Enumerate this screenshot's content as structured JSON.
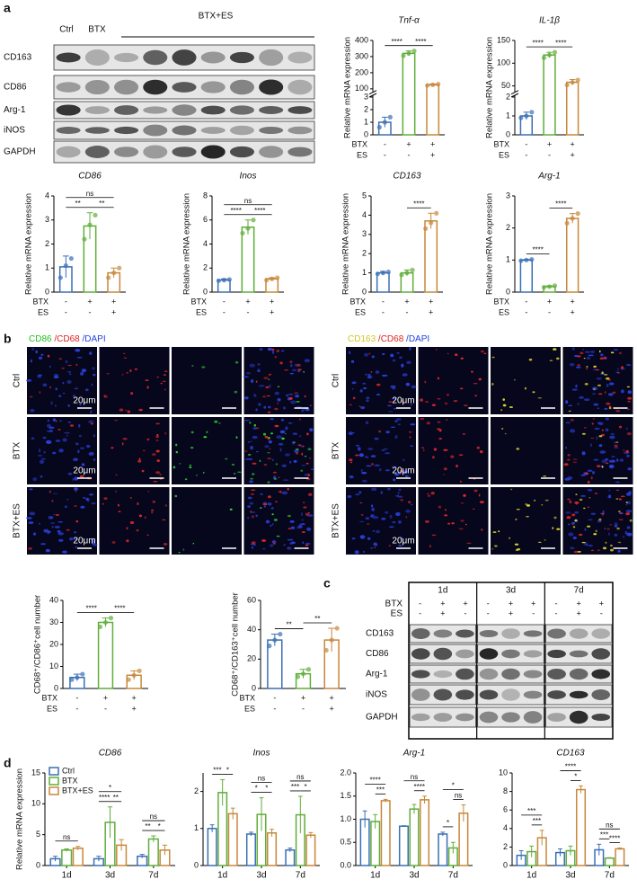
{
  "panel_labels": [
    "a",
    "b",
    "c",
    "d"
  ],
  "blot_a": {
    "columns": [
      "Ctrl",
      "BTX",
      "BTX+ES"
    ],
    "rows": [
      "CD163",
      "CD86",
      "Arg-1",
      "iNOS",
      "GAPDH"
    ]
  },
  "microscopy": [
    {
      "stain": [
        {
          "text": "CD86",
          "color": "#22c022"
        },
        {
          "text": " /CD68",
          "color": "#e02020"
        },
        {
          "text": " /DAPI",
          "color": "#2040e0"
        }
      ],
      "rows": [
        "Ctrl",
        "BTX",
        "BTX+ES"
      ],
      "scale_bar": "20μm",
      "marker_color": "#33dd33"
    },
    {
      "stain": [
        {
          "text": "CD163",
          "color": "#d0c820"
        },
        {
          "text": " /CD68",
          "color": "#e02020"
        },
        {
          "text": " /DAPI",
          "color": "#2040e0"
        }
      ],
      "rows": [
        "Ctrl",
        "BTX",
        "BTX+ES"
      ],
      "scale_bar": "20μm",
      "marker_color": "#e6e030"
    }
  ],
  "blot_c": {
    "groups": [
      "1d",
      "3d",
      "7d"
    ],
    "conditions": [
      {
        "name": "BTX",
        "signs": [
          "-",
          "+",
          "+",
          "-",
          "+",
          "+",
          "-",
          "+",
          "+"
        ]
      },
      {
        "name": "ES",
        "signs": [
          "-",
          "+",
          "-",
          "-",
          "+",
          "-",
          "-",
          "+",
          "-"
        ]
      }
    ],
    "rows": [
      "CD163",
      "CD86",
      "Arg-1",
      "iNOS",
      "GAPDH"
    ]
  },
  "chart_data": [
    {
      "type": "bar",
      "title": "Tnf-α",
      "ylabel": "Relative mRNA expression",
      "ylim": [
        0,
        400
      ],
      "ybreak": [
        3,
        90
      ],
      "yticks": [
        0,
        1,
        2,
        3,
        100,
        200,
        300,
        400
      ],
      "values": [
        1,
        320,
        125
      ],
      "errors": [
        0.4,
        15,
        5
      ],
      "points": [
        [
          0.6,
          1.0,
          1.4
        ],
        [
          305,
          320,
          335
        ],
        [
          121,
          125,
          129
        ]
      ],
      "colors": [
        "#3a6fb5",
        "#5fae3a",
        "#c8873a"
      ],
      "conditions": [
        {
          "name": "BTX",
          "signs": [
            "-",
            "+",
            "+"
          ]
        },
        {
          "name": "ES",
          "signs": [
            "-",
            "-",
            "+"
          ]
        }
      ],
      "comparisons": [
        {
          "bars": [
            0,
            1
          ],
          "label": "****"
        },
        {
          "bars": [
            1,
            2
          ],
          "label": "****"
        }
      ]
    },
    {
      "type": "bar",
      "title": "IL-1β",
      "ylabel": "Relative mRNA expression",
      "ylim": [
        0,
        150
      ],
      "ybreak": [
        2,
        40
      ],
      "yticks": [
        0,
        1,
        2,
        50,
        100,
        150
      ],
      "values": [
        1,
        118,
        58
      ],
      "errors": [
        0.2,
        6,
        6
      ],
      "points": [
        [
          0.9,
          1.0,
          1.2
        ],
        [
          112,
          118,
          124
        ],
        [
          52,
          58,
          63
        ]
      ],
      "colors": [
        "#3a6fb5",
        "#5fae3a",
        "#c8873a"
      ],
      "conditions": [
        {
          "name": "BTX",
          "signs": [
            "-",
            "+",
            "+"
          ]
        },
        {
          "name": "ES",
          "signs": [
            "-",
            "-",
            "+"
          ]
        }
      ],
      "comparisons": [
        {
          "bars": [
            0,
            1
          ],
          "label": "****"
        },
        {
          "bars": [
            1,
            2
          ],
          "label": "****"
        }
      ]
    },
    {
      "type": "bar",
      "title": "CD86",
      "ylabel": "Relative mRNA expression",
      "ylim": [
        0,
        4
      ],
      "yticks": [
        0,
        1,
        2,
        3,
        4
      ],
      "values": [
        1.05,
        2.75,
        0.8
      ],
      "errors": [
        0.45,
        0.55,
        0.2
      ],
      "points": [
        [
          0.6,
          1.1,
          1.4
        ],
        [
          2.2,
          2.8,
          3.2
        ],
        [
          0.6,
          0.8,
          1.0
        ]
      ],
      "colors": [
        "#3a6fb5",
        "#5fae3a",
        "#c8873a"
      ],
      "conditions": [
        {
          "name": "BTX",
          "signs": [
            "-",
            "+",
            "+"
          ]
        },
        {
          "name": "ES",
          "signs": [
            "-",
            "-",
            "+"
          ]
        }
      ],
      "comparisons": [
        {
          "bars": [
            0,
            1
          ],
          "label": "**"
        },
        {
          "bars": [
            1,
            2
          ],
          "label": "**"
        },
        {
          "bars": [
            0,
            2
          ],
          "label": "ns"
        }
      ]
    },
    {
      "type": "bar",
      "title": "Inos",
      "ylabel": "Relative mRNA expression",
      "ylim": [
        0,
        8
      ],
      "yticks": [
        0,
        2,
        4,
        6,
        8
      ],
      "values": [
        1.0,
        5.4,
        1.1
      ],
      "errors": [
        0.1,
        0.6,
        0.1
      ],
      "points": [
        [
          0.95,
          1.0,
          1.05
        ],
        [
          4.9,
          5.3,
          6.0
        ],
        [
          1.0,
          1.1,
          1.2
        ]
      ],
      "colors": [
        "#3a6fb5",
        "#5fae3a",
        "#c8873a"
      ],
      "conditions": [
        {
          "name": "BTX",
          "signs": [
            "-",
            "+",
            "+"
          ]
        },
        {
          "name": "ES",
          "signs": [
            "-",
            "-",
            "+"
          ]
        }
      ],
      "comparisons": [
        {
          "bars": [
            0,
            1
          ],
          "label": "****"
        },
        {
          "bars": [
            1,
            2
          ],
          "label": "****"
        },
        {
          "bars": [
            0,
            2
          ],
          "label": "ns"
        }
      ]
    },
    {
      "type": "bar",
      "title": "CD163",
      "ylabel": "Relative mRNA expression",
      "ylim": [
        0,
        5
      ],
      "yticks": [
        0,
        1,
        2,
        3,
        4,
        5
      ],
      "values": [
        1.0,
        1.0,
        3.7
      ],
      "errors": [
        0.08,
        0.15,
        0.4
      ],
      "points": [
        [
          0.95,
          1.0,
          1.05
        ],
        [
          0.9,
          1.0,
          1.15
        ],
        [
          3.3,
          3.6,
          4.1
        ]
      ],
      "colors": [
        "#3a6fb5",
        "#5fae3a",
        "#c8873a"
      ],
      "conditions": [
        {
          "name": "BTX",
          "signs": [
            "-",
            "+",
            "+"
          ]
        },
        {
          "name": "ES",
          "signs": [
            "-",
            "-",
            "+"
          ]
        }
      ],
      "comparisons": [
        {
          "bars": [
            1,
            2
          ],
          "label": "****"
        }
      ]
    },
    {
      "type": "bar",
      "title": "Arg-1",
      "ylabel": "Relative mRNA expression",
      "ylim": [
        0,
        3
      ],
      "yticks": [
        0,
        1,
        2,
        3
      ],
      "values": [
        1.0,
        0.17,
        2.3
      ],
      "errors": [
        0.02,
        0.03,
        0.15
      ],
      "points": [
        [
          0.98,
          1.0,
          1.02
        ],
        [
          0.15,
          0.17,
          0.2
        ],
        [
          2.15,
          2.3,
          2.45
        ]
      ],
      "colors": [
        "#3a6fb5",
        "#5fae3a",
        "#c8873a"
      ],
      "conditions": [
        {
          "name": "BTX",
          "signs": [
            "-",
            "+",
            "+"
          ]
        },
        {
          "name": "ES",
          "signs": [
            "-",
            "-",
            "+"
          ]
        }
      ],
      "comparisons": [
        {
          "bars": [
            0,
            1
          ],
          "label": "****"
        },
        {
          "bars": [
            1,
            2
          ],
          "label": "****"
        }
      ]
    },
    {
      "type": "bar",
      "ylabel": "CD68⁺/CD86⁺cell number",
      "ylim": [
        0,
        40
      ],
      "yticks": [
        0,
        10,
        20,
        30,
        40
      ],
      "values": [
        5,
        30,
        6
      ],
      "errors": [
        1.5,
        2,
        2
      ],
      "points": [
        [
          4,
          5,
          6.5
        ],
        [
          28,
          30,
          32
        ],
        [
          4,
          6,
          8
        ]
      ],
      "colors": [
        "#3a6fb5",
        "#5fae3a",
        "#c8873a"
      ],
      "conditions": [
        {
          "name": "BTX",
          "signs": [
            "-",
            "+",
            "+"
          ]
        },
        {
          "name": "ES",
          "signs": [
            "-",
            "-",
            "+"
          ]
        }
      ],
      "comparisons": [
        {
          "bars": [
            0,
            1
          ],
          "label": "****"
        },
        {
          "bars": [
            1,
            2
          ],
          "label": "****"
        }
      ]
    },
    {
      "type": "bar",
      "ylabel": "CD68⁺/CD163⁺cell number",
      "ylim": [
        0,
        60
      ],
      "yticks": [
        0,
        20,
        40,
        60
      ],
      "values": [
        33,
        10,
        33
      ],
      "errors": [
        4,
        3,
        8
      ],
      "points": [
        [
          29,
          33,
          37
        ],
        [
          8,
          10,
          13
        ],
        [
          26,
          33,
          41
        ]
      ],
      "colors": [
        "#3a6fb5",
        "#5fae3a",
        "#c8873a"
      ],
      "conditions": [
        {
          "name": "BTX",
          "signs": [
            "-",
            "+",
            "+"
          ]
        },
        {
          "name": "ES",
          "signs": [
            "-",
            "-",
            "+"
          ]
        }
      ],
      "comparisons": [
        {
          "bars": [
            0,
            1
          ],
          "label": "**"
        },
        {
          "bars": [
            1,
            2
          ],
          "label": "**"
        }
      ]
    },
    {
      "type": "grouped_bar",
      "title": "CD86",
      "ylabel": "Relative mRNA expression",
      "ylim": [
        0,
        15
      ],
      "yticks": [
        0,
        5,
        10,
        15
      ],
      "legend": "top-left",
      "categories": [
        "1d",
        "3d",
        "7d"
      ],
      "series": [
        {
          "name": "Ctrl",
          "color": "#3a6fb5",
          "values": [
            1.1,
            1.1,
            1.5
          ],
          "errors": [
            0.4,
            0.4,
            0.3
          ]
        },
        {
          "name": "BTX",
          "color": "#5fae3a",
          "values": [
            2.5,
            7.0,
            4.3
          ],
          "errors": [
            0.2,
            2.5,
            0.5
          ]
        },
        {
          "name": "BTX+ES",
          "color": "#c8873a",
          "values": [
            2.8,
            3.3,
            2.5
          ],
          "errors": [
            0.3,
            0.9,
            0.8
          ]
        }
      ],
      "comparisons": [
        {
          "group": 0,
          "bars": [
            0,
            2
          ],
          "label": "ns"
        },
        {
          "group": 1,
          "bars": [
            0,
            1
          ],
          "label": "****"
        },
        {
          "group": 1,
          "bars": [
            1,
            2
          ],
          "label": "**"
        },
        {
          "group": 1,
          "bars": [
            0,
            2
          ],
          "label": "*"
        },
        {
          "group": 2,
          "bars": [
            0,
            1
          ],
          "label": "**"
        },
        {
          "group": 2,
          "bars": [
            1,
            2
          ],
          "label": "*"
        },
        {
          "group": 2,
          "bars": [
            0,
            2
          ],
          "label": "ns"
        }
      ]
    },
    {
      "type": "grouped_bar",
      "title": "Inos",
      "ylim": [
        0,
        2.5
      ],
      "yticks": [
        0,
        1,
        2
      ],
      "categories": [
        "1d",
        "3d",
        "7d"
      ],
      "series": [
        {
          "name": "Ctrl",
          "color": "#3a6fb5",
          "values": [
            1.0,
            0.85,
            0.42
          ],
          "errors": [
            0.1,
            0.05,
            0.05
          ]
        },
        {
          "name": "BTX",
          "color": "#5fae3a",
          "values": [
            1.97,
            1.38,
            1.37
          ],
          "errors": [
            0.35,
            0.45,
            0.5
          ]
        },
        {
          "name": "BTX+ES",
          "color": "#c8873a",
          "values": [
            1.4,
            0.88,
            0.82
          ],
          "errors": [
            0.15,
            0.1,
            0.07
          ]
        }
      ],
      "comparisons": [
        {
          "group": 0,
          "bars": [
            0,
            1
          ],
          "label": "***"
        },
        {
          "group": 0,
          "bars": [
            1,
            2
          ],
          "label": "*"
        },
        {
          "group": 1,
          "bars": [
            0,
            1
          ],
          "label": "*"
        },
        {
          "group": 1,
          "bars": [
            1,
            2
          ],
          "label": "*"
        },
        {
          "group": 1,
          "bars": [
            0,
            2
          ],
          "label": "ns"
        },
        {
          "group": 2,
          "bars": [
            0,
            1
          ],
          "label": "***"
        },
        {
          "group": 2,
          "bars": [
            1,
            2
          ],
          "label": "*"
        },
        {
          "group": 2,
          "bars": [
            0,
            2
          ],
          "label": "ns"
        }
      ]
    },
    {
      "type": "grouped_bar",
      "title": "Arg-1",
      "ylim": [
        0,
        2.0
      ],
      "yticks": [
        {
          "value": 0,
          "label": "0.0"
        },
        0.5,
        {
          "value": 1,
          "label": "1.0"
        },
        1.5,
        {
          "value": 2,
          "label": "2.0"
        }
      ],
      "categories": [
        "1d",
        "3d",
        "7d"
      ],
      "series": [
        {
          "name": "Ctrl",
          "color": "#3a6fb5",
          "values": [
            1.0,
            0.85,
            0.68
          ],
          "errors": [
            0.18,
            0.01,
            0.04
          ]
        },
        {
          "name": "BTX",
          "color": "#5fae3a",
          "values": [
            0.95,
            1.22,
            0.38
          ],
          "errors": [
            0.15,
            0.1,
            0.12
          ]
        },
        {
          "name": "BTX+ES",
          "color": "#c8873a",
          "values": [
            1.4,
            1.42,
            1.13
          ],
          "errors": [
            0.03,
            0.08,
            0.18
          ]
        }
      ],
      "comparisons": [
        {
          "group": 0,
          "bars": [
            1,
            2
          ],
          "label": "***"
        },
        {
          "group": 0,
          "bars": [
            0,
            2
          ],
          "label": "****"
        },
        {
          "group": 1,
          "bars": [
            1,
            2
          ],
          "label": "****"
        },
        {
          "group": 1,
          "bars": [
            0,
            2
          ],
          "label": "ns"
        },
        {
          "group": 2,
          "bars": [
            0,
            1
          ],
          "label": "*"
        },
        {
          "group": 2,
          "bars": [
            1,
            2
          ],
          "label": "ns"
        },
        {
          "group": 2,
          "bars": [
            0,
            2
          ],
          "label": "*"
        }
      ]
    },
    {
      "type": "grouped_bar",
      "title": "CD163",
      "ylim": [
        0,
        10
      ],
      "yticks": [
        0,
        2,
        4,
        6,
        8,
        10
      ],
      "categories": [
        "1d",
        "3d",
        "7d"
      ],
      "series": [
        {
          "name": "Ctrl",
          "color": "#3a6fb5",
          "values": [
            1.1,
            1.4,
            1.7
          ],
          "errors": [
            0.5,
            0.4,
            0.6
          ]
        },
        {
          "name": "BTX",
          "color": "#5fae3a",
          "values": [
            1.5,
            1.6,
            0.8
          ],
          "errors": [
            0.6,
            0.5,
            0.05
          ]
        },
        {
          "name": "BTX+ES",
          "color": "#c8873a",
          "values": [
            3.0,
            8.2,
            1.8
          ],
          "errors": [
            0.8,
            0.4,
            0.1
          ]
        }
      ],
      "comparisons": [
        {
          "group": 0,
          "bars": [
            1,
            2
          ],
          "label": "***"
        },
        {
          "group": 0,
          "bars": [
            0,
            2
          ],
          "label": "***"
        },
        {
          "group": 1,
          "bars": [
            1,
            2
          ],
          "label": "*"
        },
        {
          "group": 1,
          "bars": [
            0,
            2
          ],
          "label": "****"
        },
        {
          "group": 2,
          "bars": [
            0,
            1
          ],
          "label": "***"
        },
        {
          "group": 2,
          "bars": [
            1,
            2
          ],
          "label": "****"
        },
        {
          "group": 2,
          "bars": [
            0,
            2
          ],
          "label": "ns"
        }
      ]
    }
  ]
}
